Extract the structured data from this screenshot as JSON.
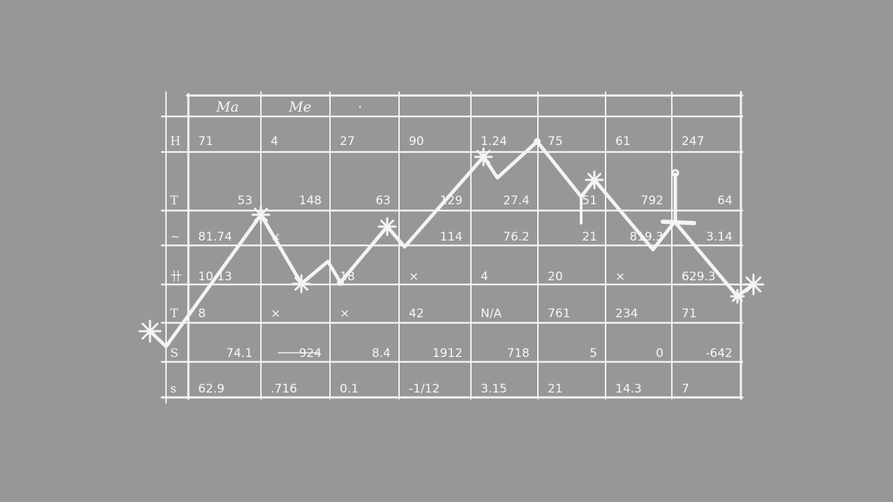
{
  "table": {
    "header": [
      "Ma",
      "Me",
      "·",
      "",
      "",
      "",
      "",
      ""
    ],
    "row_labels": [
      "H",
      "T",
      "~",
      "卄",
      "T",
      "S",
      "s"
    ],
    "rows": [
      [
        "71",
        "4",
        "27",
        "90",
        "1.24",
        "75",
        "61",
        "247"
      ],
      [
        "53",
        "148",
        "63",
        "129",
        "27.4",
        "51",
        "792",
        "64"
      ],
      [
        "81.74",
        "×",
        "",
        "114",
        "76.2",
        "21",
        "819.3",
        "3.14"
      ],
      [
        "10.13",
        "",
        "18",
        "×",
        "4",
        "20",
        "×",
        "629.3"
      ],
      [
        "8",
        "×",
        "×",
        "42",
        "N/A",
        "761",
        "234",
        "71"
      ],
      [
        "74.1",
        "924",
        "8.4",
        "1912",
        "718",
        "5",
        "0",
        "-642"
      ],
      [
        "62.9",
        ".716",
        "0.1",
        "-1/12",
        "3.15",
        "21",
        "14.3",
        "7"
      ]
    ],
    "struck_cells": [
      "924"
    ]
  },
  "colors": {
    "background": "#979797",
    "chalk": "#f4f4f4"
  }
}
